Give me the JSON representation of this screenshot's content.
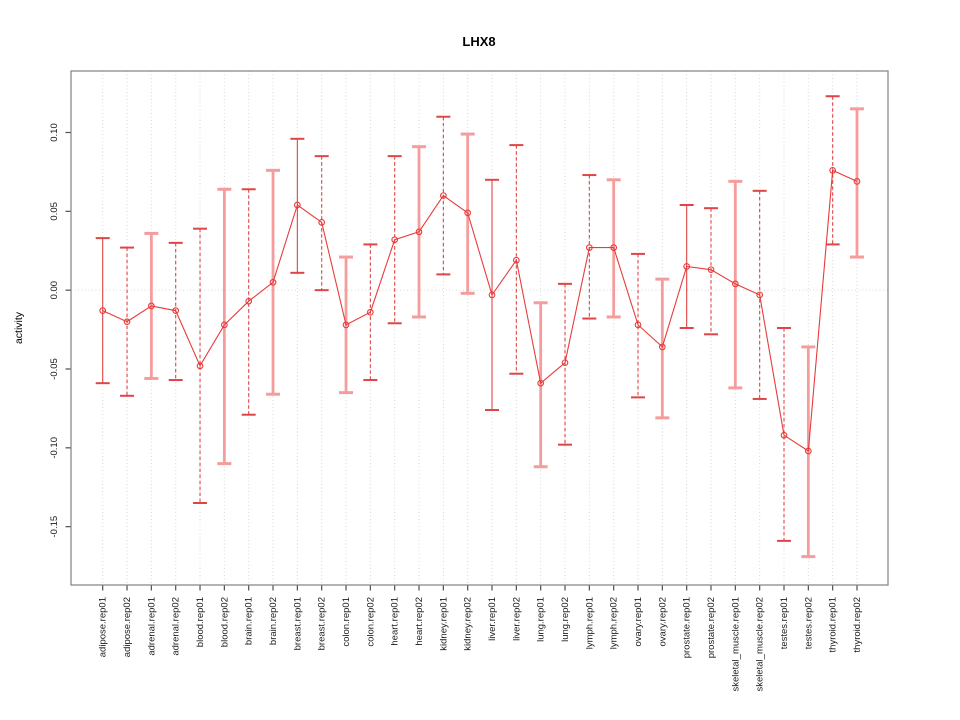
{
  "window": {
    "background": "#FFFFFF"
  },
  "chart_data": {
    "type": "line",
    "title": "LHX8",
    "xlabel": "",
    "ylabel": "activity",
    "legend": "none",
    "grid": "vertical dotted gridline per category; horizontal dotted line at y=0",
    "marker": "open-circle",
    "categories": [
      "adipose.rep01",
      "adipose.rep02",
      "adrenal.rep01",
      "adrenal.rep02",
      "blood.rep01",
      "blood.rep02",
      "brain.rep01",
      "brain.rep02",
      "breast.rep01",
      "breast.rep02",
      "colon.rep01",
      "colon.rep02",
      "heart.rep01",
      "heart.rep02",
      "kidney.rep01",
      "kidney.rep02",
      "liver.rep01",
      "liver.rep02",
      "lung.rep01",
      "lung.rep02",
      "lymph.rep01",
      "lymph.rep02",
      "ovary.rep01",
      "ovary.rep02",
      "prostate.rep01",
      "prostate.rep02",
      "skeletal_muscle.rep01",
      "skeletal_muscle.rep02",
      "testes.rep01",
      "testes.rep02",
      "thyroid.rep01",
      "thyroid.rep02"
    ],
    "series": [
      {
        "name": "activity",
        "values": [
          -0.013,
          -0.02,
          -0.01,
          -0.013,
          -0.048,
          -0.022,
          -0.007,
          0.005,
          0.054,
          0.043,
          -0.022,
          -0.014,
          0.032,
          0.037,
          0.06,
          0.049,
          -0.003,
          0.019,
          -0.059,
          -0.046,
          0.027,
          0.027,
          -0.022,
          -0.036,
          0.015,
          0.013,
          0.004,
          -0.003,
          -0.092,
          -0.102,
          0.076,
          0.069
        ]
      }
    ],
    "error_low": [
      -0.059,
      -0.067,
      -0.056,
      -0.057,
      -0.135,
      -0.11,
      -0.079,
      -0.066,
      0.011,
      0.0,
      -0.065,
      -0.057,
      -0.021,
      -0.017,
      0.01,
      -0.002,
      -0.076,
      -0.053,
      -0.112,
      -0.098,
      -0.018,
      -0.017,
      -0.068,
      -0.081,
      -0.024,
      -0.028,
      -0.062,
      -0.069,
      -0.159,
      -0.169,
      0.029,
      0.021
    ],
    "error_high": [
      0.033,
      0.027,
      0.036,
      0.03,
      0.039,
      0.064,
      0.064,
      0.076,
      0.096,
      0.085,
      0.021,
      0.029,
      0.085,
      0.091,
      0.11,
      0.099,
      0.07,
      0.092,
      -0.008,
      0.004,
      0.073,
      0.07,
      0.023,
      0.007,
      0.054,
      0.052,
      0.069,
      0.063,
      -0.024,
      -0.036,
      0.123,
      0.115
    ],
    "error_bar_styles": [
      "solid",
      "dashed",
      "thick",
      "dashed",
      "dashed",
      "thick",
      "dashed",
      "thick",
      "solid",
      "dashed",
      "thick",
      "dashed",
      "dashed",
      "thick",
      "dashed",
      "thick",
      "solid",
      "dashed",
      "thick",
      "dashed",
      "dashed",
      "thick",
      "dashed",
      "thick",
      "solid",
      "dashed",
      "thick",
      "dashed",
      "dashed",
      "thick",
      "dashed",
      "thick"
    ],
    "yticks": [
      0.1,
      0.05,
      0.0,
      -0.05,
      -0.1,
      -0.15
    ],
    "ytick_labels": [
      "0.10",
      "0.05",
      "0.00",
      "-0.05",
      "-0.10",
      "-0.15"
    ],
    "ylim": [
      -0.187,
      0.139
    ],
    "colors": {
      "line": "#E83B3B",
      "marker": "#E83B3B",
      "error_solid": "#E04545",
      "error_dashed": "#E04545",
      "error_thick": "#F59C9C",
      "grid": "#D8D8D8",
      "box": "#8A8A8A",
      "tick": "#4D4D4D",
      "text": "#000000"
    }
  }
}
